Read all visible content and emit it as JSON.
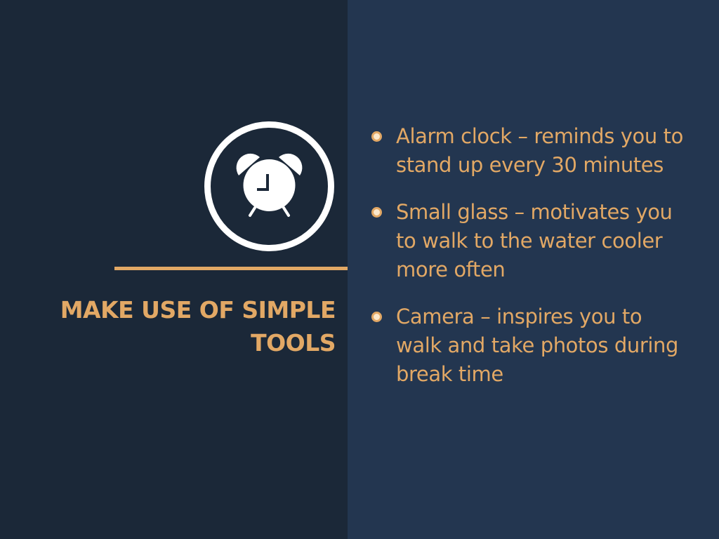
{
  "slide": {
    "title": "MAKE USE OF SIMPLE TOOLS",
    "icon": "alarm-clock-icon",
    "colors": {
      "left_background": "#1b2838",
      "right_background": "#233650",
      "accent": "#e2a865",
      "icon": "#ffffff"
    },
    "bullets": [
      {
        "text": "Alarm clock – reminds you to stand up every 30 minutes"
      },
      {
        "text": "Small glass – motivates you to walk to the water cooler more often"
      },
      {
        "text": "Camera – inspires you to walk and take photos during break time"
      }
    ]
  }
}
